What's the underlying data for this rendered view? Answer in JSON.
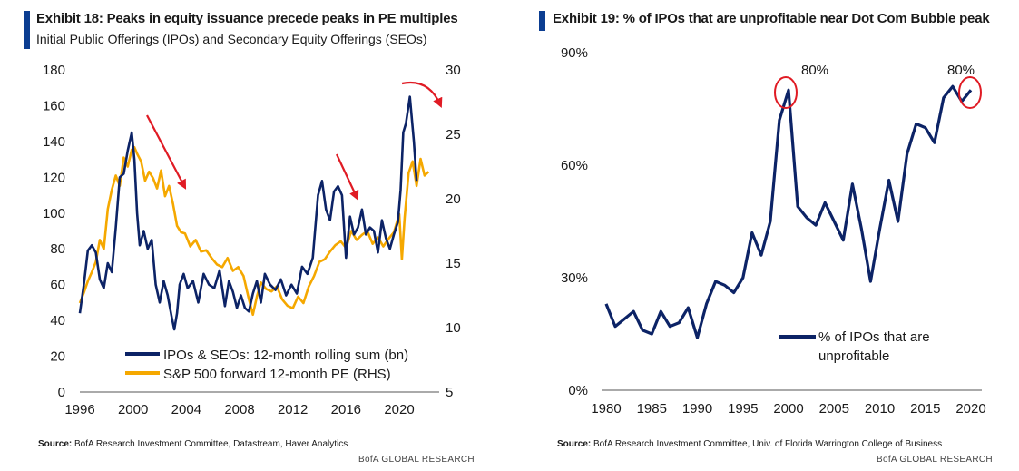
{
  "chart_data": [
    {
      "type": "line",
      "title": "Exhibit 18: Peaks in equity issuance precede peaks in PE multiples",
      "subtitle": "Initial Public Offerings (IPOs) and Secondary Equity Offerings (SEOs)",
      "xlabel": "",
      "ylabel": "",
      "y2label": "",
      "xlim": [
        1996,
        2023
      ],
      "ylim": [
        0,
        180
      ],
      "y2lim": [
        5,
        30
      ],
      "x_ticks": [
        "1996",
        "2000",
        "2004",
        "2008",
        "2012",
        "2016",
        "2020"
      ],
      "y_ticks": [
        "0",
        "20",
        "40",
        "60",
        "80",
        "100",
        "120",
        "140",
        "160",
        "180"
      ],
      "y2_ticks": [
        "5",
        "10",
        "15",
        "20",
        "25",
        "30"
      ],
      "legend_position": "bottom-center",
      "series": [
        {
          "name": "IPOs & SEOs: 12-month rolling sum (bn)",
          "color": "#0c2366",
          "axis": "left",
          "x": [
            1996,
            1996.3,
            1996.6,
            1996.9,
            1997.2,
            1997.5,
            1997.8,
            1998.1,
            1998.4,
            1998.7,
            1999,
            1999.3,
            1999.6,
            1999.9,
            2000.1,
            2000.3,
            2000.5,
            2000.8,
            2001.1,
            2001.4,
            2001.7,
            2002,
            2002.3,
            2002.6,
            2002.9,
            2003.1,
            2003.3,
            2003.5,
            2003.8,
            2004.1,
            2004.5,
            2004.9,
            2005.3,
            2005.7,
            2006.1,
            2006.5,
            2006.9,
            2007.2,
            2007.5,
            2007.8,
            2008.1,
            2008.4,
            2008.7,
            2009,
            2009.3,
            2009.6,
            2009.9,
            2010.3,
            2010.7,
            2011.1,
            2011.5,
            2011.9,
            2012.3,
            2012.7,
            2013.1,
            2013.5,
            2013.9,
            2014.2,
            2014.5,
            2014.8,
            2015.1,
            2015.4,
            2015.7,
            2016,
            2016.3,
            2016.6,
            2016.9,
            2017.2,
            2017.5,
            2017.8,
            2018.1,
            2018.4,
            2018.7,
            2019,
            2019.3,
            2019.6,
            2019.9,
            2020.1,
            2020.3,
            2020.5,
            2020.8,
            2021.1,
            2021.3
          ],
          "values": [
            44,
            60,
            79,
            82,
            78,
            63,
            58,
            72,
            67,
            92,
            120,
            122,
            135,
            145,
            130,
            100,
            82,
            90,
            80,
            85,
            60,
            50,
            62,
            54,
            42,
            35,
            44,
            60,
            66,
            58,
            62,
            50,
            66,
            60,
            58,
            68,
            48,
            62,
            56,
            47,
            54,
            47,
            45,
            55,
            62,
            50,
            66,
            60,
            57,
            63,
            54,
            60,
            55,
            70,
            66,
            75,
            110,
            118,
            102,
            96,
            112,
            115,
            110,
            75,
            98,
            88,
            92,
            102,
            88,
            92,
            90,
            78,
            96,
            86,
            80,
            88,
            95,
            113,
            145,
            150,
            165,
            140,
            118
          ],
          "visible_range": [
            1996,
            2021.3
          ]
        },
        {
          "name": "S&P 500 forward 12-month PE (RHS)",
          "color": "#f5a800",
          "axis": "right",
          "x": [
            1996,
            1996.3,
            1996.6,
            1996.9,
            1997.2,
            1997.5,
            1997.8,
            1998.1,
            1998.4,
            1998.7,
            1999,
            1999.3,
            1999.6,
            1999.9,
            2000.1,
            2000.3,
            2000.6,
            2000.9,
            2001.2,
            2001.5,
            2001.8,
            2002.1,
            2002.4,
            2002.7,
            2003,
            2003.3,
            2003.6,
            2003.9,
            2004.3,
            2004.7,
            2005.1,
            2005.5,
            2005.9,
            2006.3,
            2006.7,
            2007.1,
            2007.5,
            2007.9,
            2008.3,
            2008.7,
            2009,
            2009.3,
            2009.6,
            2010,
            2010.4,
            2010.8,
            2011.2,
            2011.6,
            2012,
            2012.4,
            2012.8,
            2013.2,
            2013.6,
            2014,
            2014.4,
            2014.8,
            2015.2,
            2015.6,
            2016,
            2016.4,
            2016.8,
            2017.2,
            2017.6,
            2018,
            2018.4,
            2018.8,
            2019.2,
            2019.6,
            2020,
            2020.2,
            2020.4,
            2020.7,
            2021,
            2021.3,
            2021.6,
            2021.9,
            2022.2
          ],
          "values": [
            11.9,
            12.7,
            13.6,
            14.3,
            15.1,
            16.8,
            16.1,
            19.2,
            20.7,
            21.8,
            21.0,
            23.2,
            22.5,
            23.8,
            24.0,
            23.5,
            22.9,
            21.4,
            22.1,
            21.6,
            20.8,
            22.2,
            20.2,
            21.0,
            19.6,
            17.9,
            17.4,
            17.3,
            16.3,
            16.8,
            15.9,
            16.0,
            15.4,
            14.9,
            14.7,
            15.4,
            14.4,
            14.7,
            14.0,
            12.2,
            11.0,
            12.4,
            13.5,
            13.0,
            12.8,
            13.2,
            12.2,
            11.7,
            11.5,
            12.4,
            11.9,
            13.2,
            14.0,
            15.1,
            15.3,
            15.9,
            16.4,
            16.7,
            16.2,
            17.5,
            16.8,
            17.2,
            17.5,
            16.5,
            17.0,
            16.3,
            16.9,
            17.4,
            18.8,
            15.3,
            18.5,
            22.0,
            22.9,
            21.0,
            23.1,
            21.8,
            22.1
          ],
          "visible_range": [
            1996,
            2022.2
          ]
        }
      ],
      "annotations": [
        "red downward arrow near 2001-2003 peak",
        "red downward arrow near 2015-2017 peak",
        "red curved arrow at 2020-2021 peak"
      ]
    },
    {
      "type": "line",
      "title": "Exhibit 19: % of IPOs that are unprofitable near Dot Com Bubble peak",
      "xlabel": "",
      "ylabel": "",
      "xlim": [
        1980,
        2020
      ],
      "ylim": [
        0,
        90
      ],
      "x_ticks": [
        "1980",
        "1985",
        "1990",
        "1995",
        "2000",
        "2005",
        "2010",
        "2015",
        "2020"
      ],
      "y_ticks": [
        "0%",
        "30%",
        "60%",
        "90%"
      ],
      "legend_position": "bottom-right",
      "series": [
        {
          "name": "% of IPOs that are unprofitable",
          "color": "#0c2366",
          "x": [
            1980,
            1981,
            1982,
            1983,
            1984,
            1985,
            1986,
            1987,
            1988,
            1989,
            1990,
            1991,
            1992,
            1993,
            1994,
            1995,
            1996,
            1997,
            1998,
            1999,
            2000,
            2001,
            2002,
            2003,
            2004,
            2005,
            2006,
            2007,
            2008,
            2009,
            2010,
            2011,
            2012,
            2013,
            2014,
            2015,
            2016,
            2017,
            2018,
            2019,
            2020
          ],
          "values": [
            23,
            17,
            19,
            21,
            16,
            15,
            21,
            17,
            18,
            22,
            14,
            23,
            29,
            28,
            26,
            30,
            42,
            36,
            45,
            72,
            80,
            49,
            46,
            44,
            50,
            45,
            40,
            55,
            43,
            29,
            43,
            56,
            45,
            63,
            71,
            70,
            66,
            78,
            81,
            77,
            80
          ]
        }
      ],
      "annotations": [
        "80%",
        "80%"
      ]
    }
  ],
  "left": {
    "source_label": "Source:",
    "source_text": "BofA Research Investment Committee, Datastream, Haver Analytics",
    "brand": "BofA GLOBAL RESEARCH",
    "legend_line1": "IPOs & SEOs: 12-month rolling sum (bn)",
    "legend_line2": "S&P 500 forward 12-month PE (RHS)"
  },
  "right": {
    "source_label": "Source:",
    "source_text": "BofA Research Investment Committee, Univ. of Florida Warrington College of Business",
    "brand": "BofA GLOBAL RESEARCH",
    "legend_line1": "% of IPOs that are",
    "legend_line2": "unprofitable",
    "annotation_2000": "80%",
    "annotation_2020": "80%"
  },
  "colors": {
    "navy": "#0c2366",
    "gold": "#f5a800",
    "red": "#e01b24",
    "title_bar": "#0b3d91"
  }
}
